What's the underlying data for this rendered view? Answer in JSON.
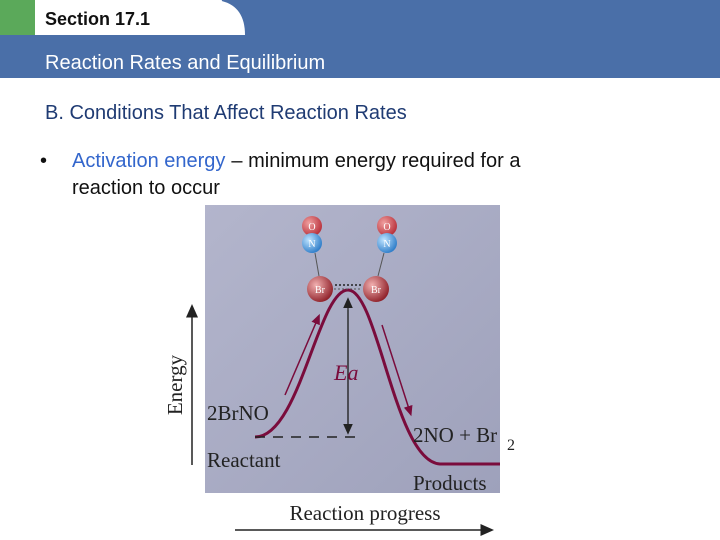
{
  "header": {
    "section": "Section 17.1",
    "title": "Reaction Rates and Equilibrium"
  },
  "heading": "B. Conditions That Affect Reaction Rates",
  "bullet": {
    "term": "Activation energy",
    "definition_line1": "– minimum energy required for a",
    "definition_line2": "reaction to occur"
  },
  "diagram": {
    "y_axis": "Energy",
    "x_axis": "Reaction progress",
    "reactant_formula": "2BrNO",
    "reactant_label": "Reactant",
    "products_formula": "2NO + Br",
    "products_subscript": "2",
    "products_label": "Products",
    "activation_label": "Ea",
    "atoms": [
      "O",
      "N",
      "Br",
      "O",
      "N",
      "Br"
    ]
  }
}
